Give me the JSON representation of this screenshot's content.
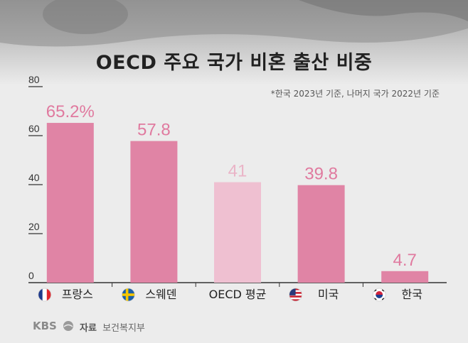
{
  "title": "OECD 주요 국가 비혼 출산 비중",
  "note": "*한국 2023년 기준, 나머지 국가 2022년 기준",
  "footer": {
    "logo": "KBS",
    "source_label": "자료",
    "source_value": "보건복지부"
  },
  "colors": {
    "bar": "#e084a5",
    "bar_avg": "#efc0d1",
    "label": "#e07a9f",
    "label_avg": "#eab4c7",
    "axis": "#333333"
  },
  "chart_data": {
    "type": "bar",
    "categories": [
      "프랑스",
      "스웨덴",
      "OECD 평균",
      "미국",
      "한국"
    ],
    "values": [
      65.2,
      57.8,
      41,
      39.8,
      4.7
    ],
    "value_labels": [
      "65.2%",
      "57.8",
      "41",
      "39.8",
      "4.7"
    ],
    "flags": [
      "france-flag-icon",
      "sweden-flag-icon",
      "",
      "usa-flag-icon",
      "korea-flag-icon"
    ],
    "y_ticks": [
      0,
      20,
      40,
      60,
      80
    ],
    "ylim": [
      0,
      80
    ],
    "grid": false
  }
}
